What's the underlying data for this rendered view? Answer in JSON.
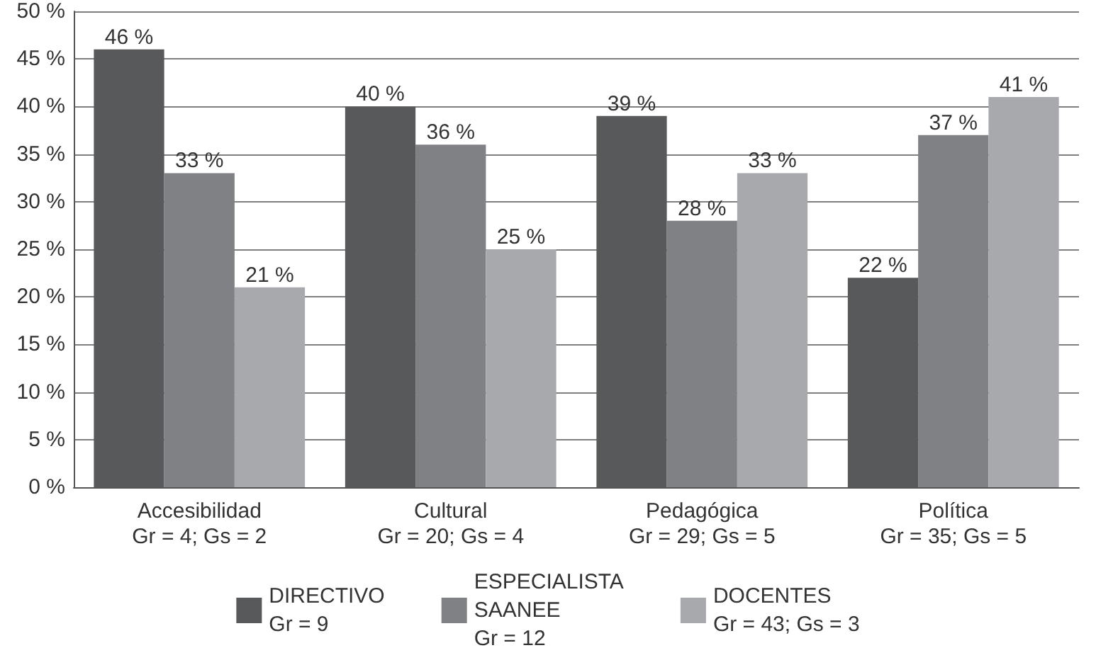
{
  "chart_data": {
    "type": "bar",
    "categories": [
      "Accesibilidad\nGr = 4; Gs = 2",
      "Cultural\nGr = 20; Gs = 4",
      "Pedagógica\nGr = 29; Gs = 5",
      "Política\nGr = 35; Gs = 5"
    ],
    "series": [
      {
        "name": "DIRECTIVO\nGr = 9",
        "color": "#58595b",
        "values": [
          46,
          40,
          39,
          22
        ],
        "value_labels": [
          "46 %",
          "40 %",
          "39 %",
          "22 %"
        ]
      },
      {
        "name": "ESPECIALISTA\nSAANEE\nGr = 12",
        "color": "#808184",
        "values": [
          33,
          36,
          28,
          37
        ],
        "value_labels": [
          "33 %",
          "36 %",
          "28 %",
          "37 %"
        ]
      },
      {
        "name": "DOCENTES\nGr = 43; Gs = 3",
        "color": "#a7a9ac",
        "values": [
          21,
          25,
          33,
          41
        ],
        "value_labels": [
          "21 %",
          "25 %",
          "33 %",
          "41 %"
        ]
      }
    ],
    "ylim": [
      0,
      50
    ],
    "yticks": [
      {
        "value": 0,
        "label": "0 %"
      },
      {
        "value": 5,
        "label": "5 %"
      },
      {
        "value": 10,
        "label": "10 %"
      },
      {
        "value": 15,
        "label": "15 %"
      },
      {
        "value": 20,
        "label": "20 %"
      },
      {
        "value": 25,
        "label": "25 %"
      },
      {
        "value": 30,
        "label": "30 %"
      },
      {
        "value": 35,
        "label": "35 %"
      },
      {
        "value": 40,
        "label": "40 %"
      },
      {
        "value": 45,
        "label": "45 %"
      },
      {
        "value": 50,
        "label": "50 %"
      }
    ],
    "grid": "y",
    "legend": "bottom"
  }
}
